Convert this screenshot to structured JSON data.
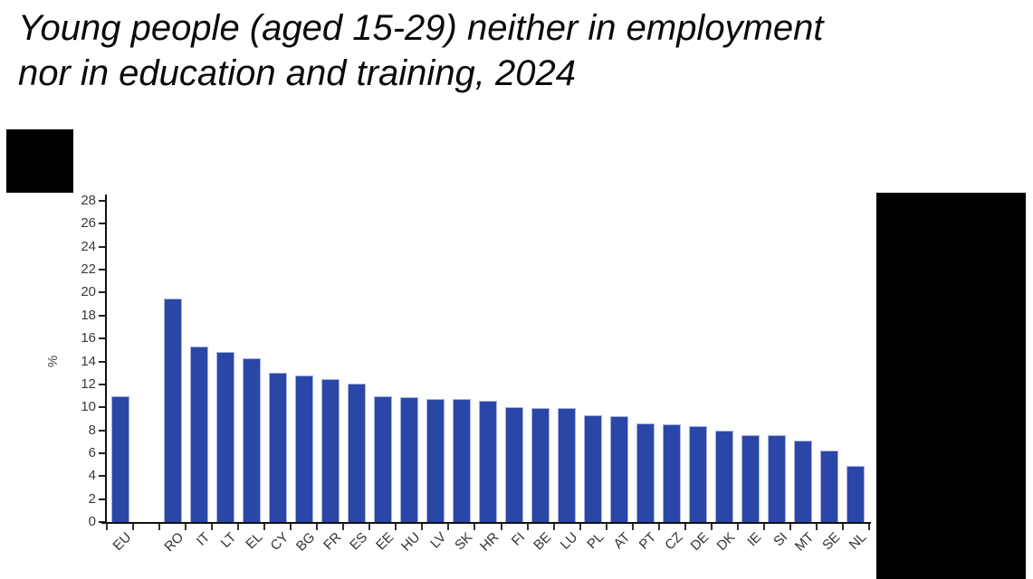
{
  "page": {
    "title_line1": "Young people (aged 15-29) neither in employment",
    "title_line2": "nor in education and training, 2024"
  },
  "chart_data": {
    "type": "bar",
    "title": "Young people (aged 15-29) neither in employment nor in education and training, 2024",
    "xlabel": "",
    "ylabel": "%",
    "ylim": [
      0,
      28
    ],
    "ytick_step": 2,
    "grid": false,
    "legend": "none",
    "bar_color": "#2a47a8",
    "bar_edge_color": "#a9b3dd",
    "gap_after_index": 0,
    "categories": [
      "EU",
      "RO",
      "IT",
      "LT",
      "EL",
      "CY",
      "BG",
      "FR",
      "ES",
      "EE",
      "HU",
      "LV",
      "SK",
      "HR",
      "FI",
      "BE",
      "LU",
      "PL",
      "AT",
      "PT",
      "CZ",
      "DE",
      "DK",
      "IE",
      "SI",
      "MT",
      "SE",
      "NL"
    ],
    "values": [
      11.0,
      19.5,
      15.3,
      14.8,
      14.3,
      13.0,
      12.8,
      12.5,
      12.1,
      11.0,
      10.9,
      10.7,
      10.7,
      10.6,
      10.0,
      9.9,
      9.9,
      9.3,
      9.2,
      8.6,
      8.5,
      8.4,
      8.0,
      7.6,
      7.6,
      7.1,
      6.2,
      4.9
    ]
  }
}
